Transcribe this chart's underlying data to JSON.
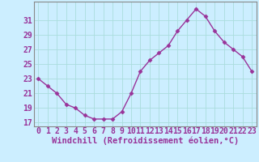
{
  "x": [
    0,
    1,
    2,
    3,
    4,
    5,
    6,
    7,
    8,
    9,
    10,
    11,
    12,
    13,
    14,
    15,
    16,
    17,
    18,
    19,
    20,
    21,
    22,
    23
  ],
  "y": [
    23,
    22,
    21,
    19.5,
    19,
    18,
    17.5,
    17.5,
    17.5,
    18.5,
    21,
    24,
    25.5,
    26.5,
    27.5,
    29.5,
    31,
    32.5,
    31.5,
    29.5,
    28,
    27,
    26,
    24
  ],
  "line_color": "#993399",
  "marker": "D",
  "markersize": 2.5,
  "bg_color": "#cceeff",
  "grid_color": "#aadddd",
  "xlabel": "Windchill (Refroidissement éolien,°C)",
  "yticks": [
    17,
    19,
    21,
    23,
    25,
    27,
    29,
    31
  ],
  "xtick_labels": [
    "0",
    "1",
    "2",
    "3",
    "4",
    "5",
    "6",
    "7",
    "8",
    "9",
    "10",
    "11",
    "12",
    "13",
    "14",
    "15",
    "16",
    "17",
    "18",
    "19",
    "20",
    "21",
    "22",
    "23"
  ],
  "ylim": [
    16.5,
    33.5
  ],
  "xlim": [
    -0.5,
    23.5
  ],
  "xlabel_fontsize": 7.5,
  "tick_fontsize": 7,
  "linewidth": 1.0,
  "spine_color": "#888888"
}
